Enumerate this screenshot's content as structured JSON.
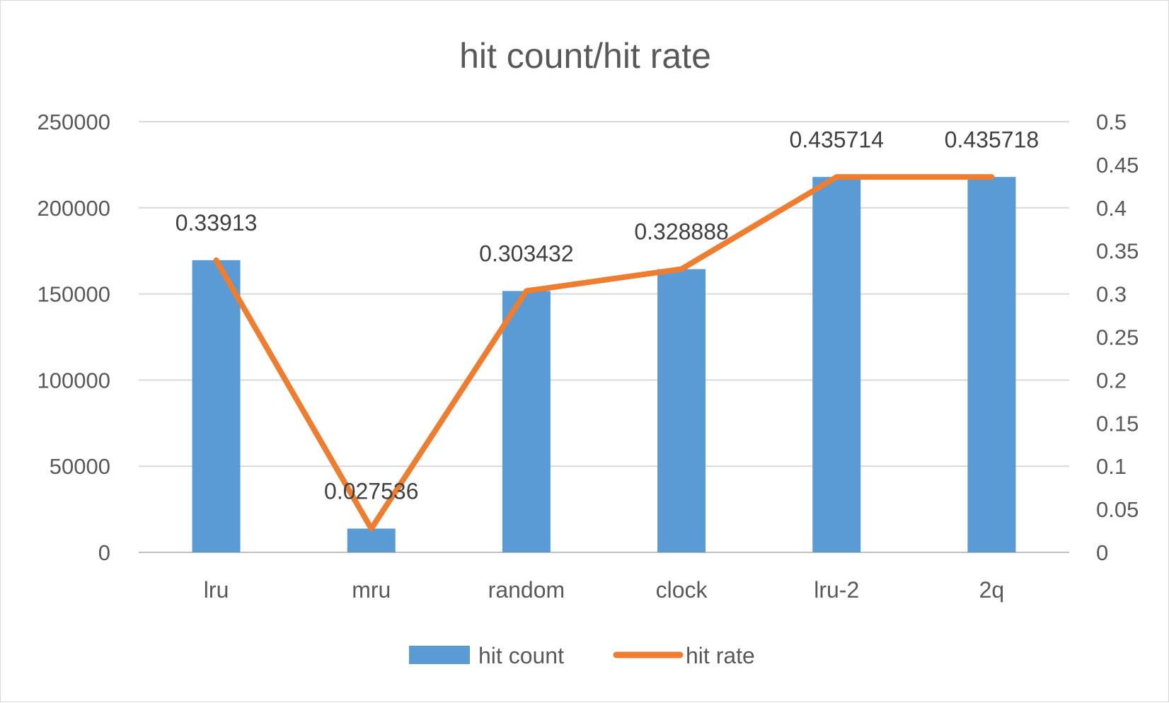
{
  "chart_data": {
    "type": "bar",
    "title": "hit count/hit rate",
    "categories": [
      "lru",
      "mru",
      "random",
      "clock",
      "lru-2",
      "2q"
    ],
    "series": [
      {
        "name": "hit count",
        "type": "bar",
        "axis": "left",
        "color": "#5b9bd5",
        "values": [
          169600,
          13800,
          151700,
          164400,
          217900,
          217900
        ]
      },
      {
        "name": "hit rate",
        "type": "line",
        "axis": "right",
        "color": "#ed7d31",
        "values": [
          0.33913,
          0.027536,
          0.303432,
          0.328888,
          0.435714,
          0.435718
        ],
        "data_labels": [
          "0.33913",
          "0.027536",
          "0.303432",
          "0.328888",
          "0.435714",
          "0.435718"
        ]
      }
    ],
    "y_left": {
      "ylim": [
        0,
        250000
      ],
      "ticks": [
        "0",
        "50000",
        "100000",
        "150000",
        "200000",
        "250000"
      ]
    },
    "y_right": {
      "ylim": [
        0,
        0.5
      ],
      "ticks": [
        "0",
        "0.05",
        "0.1",
        "0.15",
        "0.2",
        "0.25",
        "0.3",
        "0.35",
        "0.4",
        "0.45",
        "0.5"
      ]
    },
    "grid": true,
    "legend": "bottom"
  }
}
